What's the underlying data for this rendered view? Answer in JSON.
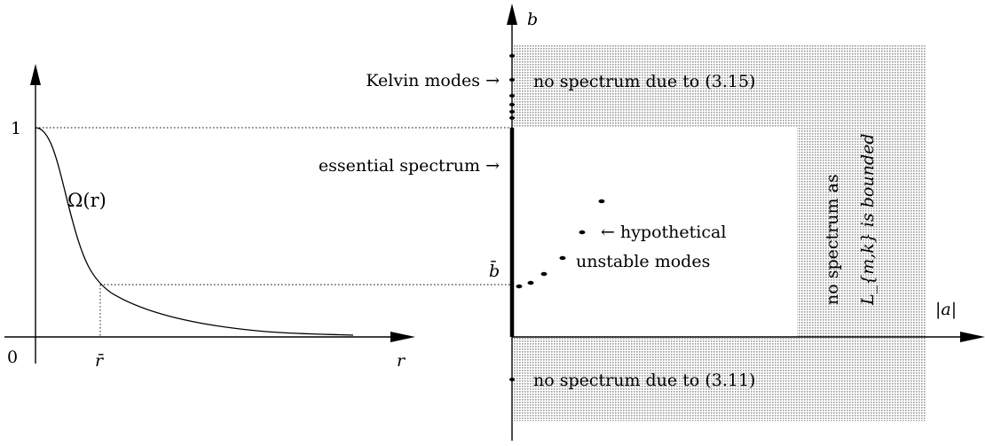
{
  "left_plot": {
    "tick_one": "1",
    "origin": "0",
    "curve_label": "Ω(r)",
    "x_tick_label": "r̄",
    "x_axis_label": "r"
  },
  "right_plot": {
    "y_axis_label": "b",
    "x_axis_label": "|a|",
    "b_bar_label": "b̄",
    "kelvin_label": "Kelvin modes →",
    "essential_label": "essential spectrum →",
    "hypothetical_line1": "← hypothetical",
    "hypothetical_line2": "unstable modes",
    "top_region_label": "no spectrum due to (3.15)",
    "bottom_region_label": "no spectrum due to (3.11)",
    "right_region_line1": "no spectrum as",
    "right_region_line2": "L_{m,k} is bounded",
    "region_fill": "#e0e0e0"
  }
}
